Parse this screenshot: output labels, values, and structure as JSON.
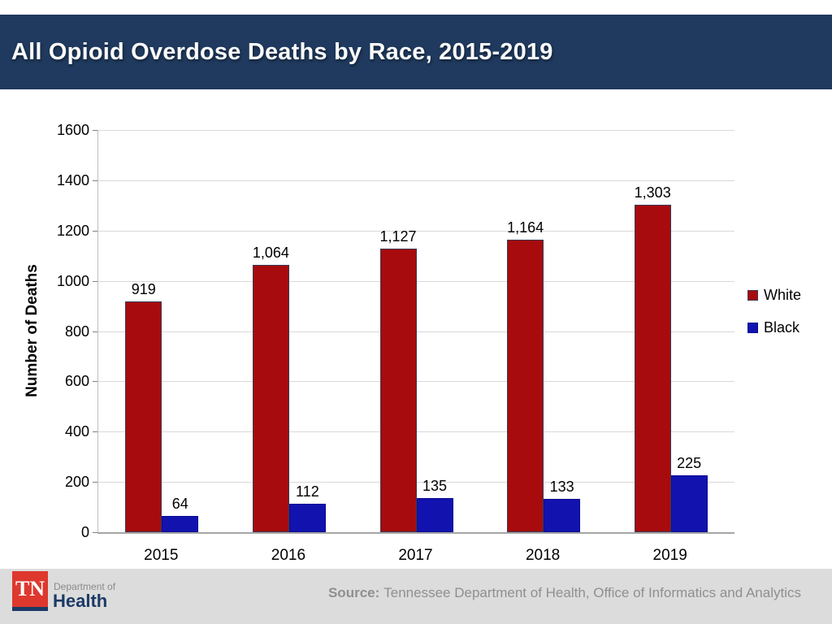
{
  "slide": {
    "title": "All Opioid Overdose Deaths by Race, 2015-2019"
  },
  "chart_data": {
    "type": "bar",
    "title": "All Opioid Overdose Deaths by Race, 2015-2019",
    "categories": [
      "2015",
      "2016",
      "2017",
      "2018",
      "2019"
    ],
    "series": [
      {
        "name": "White",
        "color": "#A80B0D",
        "border": "#3B3B52",
        "values": [
          919,
          1064,
          1127,
          1164,
          1303
        ],
        "labels": [
          "919",
          "1,064",
          "1,127",
          "1,164",
          "1,303"
        ]
      },
      {
        "name": "Black",
        "color": "#1212AE",
        "border": "#0E0E92",
        "values": [
          64,
          112,
          135,
          133,
          225
        ],
        "labels": [
          "64",
          "112",
          "135",
          "133",
          "225"
        ]
      }
    ],
    "xlabel": "",
    "ylabel": "Number of Deaths",
    "ylim": [
      0,
      1600
    ],
    "ytick_step": 200,
    "grid": true,
    "legend_position": "right"
  },
  "footer": {
    "source_label": "Source:",
    "source_text": "Tennessee Department of Health, Office of Informatics and Analytics",
    "logo": {
      "tn": "TN",
      "department_of": "Department of",
      "health": "Health"
    }
  },
  "colors": {
    "header_bg": "#1F3A5E",
    "footer_bg": "#DCDCDC",
    "tn_red": "#DE382E",
    "tn_navy": "#1B3A66",
    "bar_white": "#A80B0D",
    "bar_black": "#1212AE",
    "source_text": "#8F8F8F"
  }
}
